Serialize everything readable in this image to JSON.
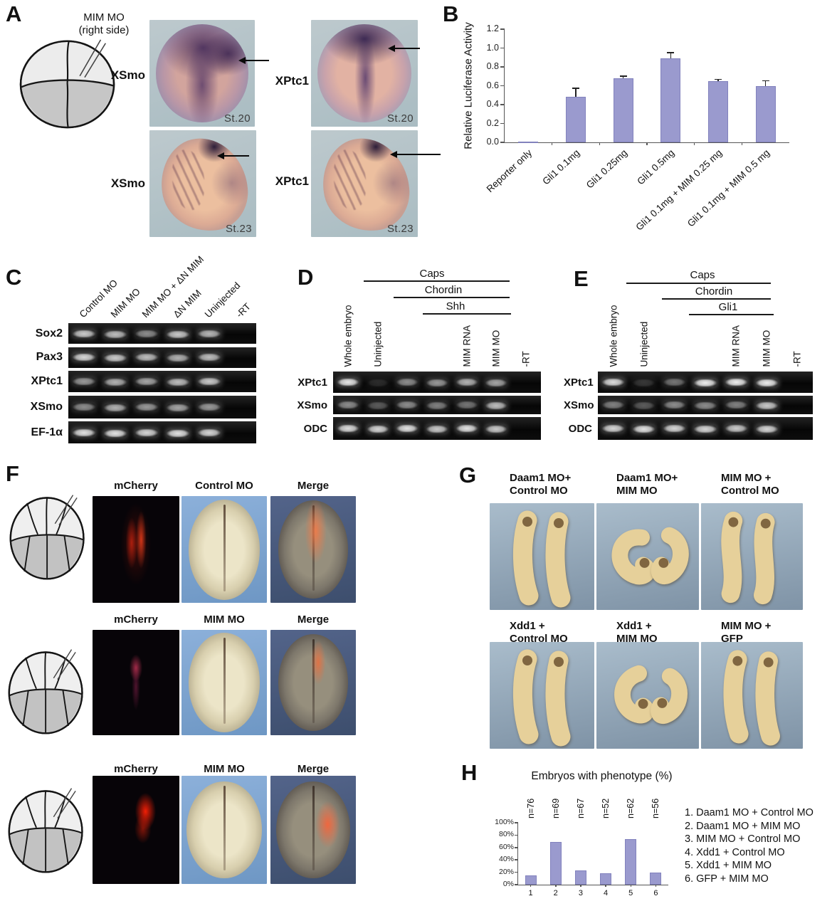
{
  "colors": {
    "bar_fill": "#9a9ace",
    "bar_edge": "#8282bd",
    "gel_bg": "#0d0d0d",
    "photo_blue_bg": "#7ba3cf",
    "merge_bg": "#46587a",
    "gphoto_bg": "#92a9bd",
    "embryo_tan": "#e6d09a",
    "stain_purple": "#6b4f82"
  },
  "panelA": {
    "letter": "A",
    "caption_line1": "MIM MO",
    "caption_line2": "(right side)",
    "items": [
      {
        "gene": "XSmo",
        "stage": "St.20"
      },
      {
        "gene": "XPtc1",
        "stage": "St.20"
      },
      {
        "gene": "XSmo",
        "stage": "St.23"
      },
      {
        "gene": "XPtc1",
        "stage": "St.23"
      }
    ]
  },
  "panelC": {
    "letter": "C",
    "lane_labels": [
      "Control MO",
      "MIM MO",
      "MIM MO + ΔN MIM",
      "ΔN MIM",
      "Uninjected",
      "-RT"
    ],
    "rows": [
      {
        "label": "Sox2",
        "bands": [
          0.8,
          0.75,
          0.55,
          0.8,
          0.72,
          0
        ]
      },
      {
        "label": "Pax3",
        "bands": [
          0.85,
          0.8,
          0.75,
          0.7,
          0.75,
          0
        ]
      },
      {
        "label": "XPtc1",
        "bands": [
          0.6,
          0.7,
          0.65,
          0.75,
          0.8,
          0
        ]
      },
      {
        "label": "XSmo",
        "bands": [
          0.55,
          0.7,
          0.6,
          0.65,
          0.6,
          0
        ]
      },
      {
        "label": "EF-1α",
        "bands": [
          0.9,
          0.9,
          0.85,
          0.9,
          0.85,
          0
        ]
      }
    ]
  },
  "panelD": {
    "letter": "D",
    "groups": [
      "Caps",
      "Chordin",
      "Shh"
    ],
    "lane_labels": [
      "Whole embryo",
      "Uninjected",
      "",
      "",
      "MIM RNA",
      "MIM MO",
      "-RT"
    ],
    "rows": [
      {
        "label": "XPtc1",
        "bands": [
          0.92,
          0.15,
          0.55,
          0.6,
          0.7,
          0.65,
          0
        ]
      },
      {
        "label": "XSmo",
        "bands": [
          0.55,
          0.35,
          0.55,
          0.5,
          0.45,
          0.75,
          0
        ]
      },
      {
        "label": "ODC",
        "bands": [
          0.88,
          0.85,
          0.9,
          0.8,
          0.9,
          0.8,
          0
        ]
      }
    ]
  },
  "panelE": {
    "letter": "E",
    "groups": [
      "Caps",
      "Chordin",
      "Gli1"
    ],
    "lane_labels": [
      "Whole embryo",
      "Uninjected",
      "",
      "",
      "MIM RNA",
      "MIM MO",
      "-RT"
    ],
    "rows": [
      {
        "label": "XPtc1",
        "bands": [
          0.88,
          0.2,
          0.45,
          0.95,
          0.95,
          0.95,
          0
        ]
      },
      {
        "label": "XSmo",
        "bands": [
          0.5,
          0.35,
          0.55,
          0.55,
          0.5,
          0.8,
          0
        ]
      },
      {
        "label": "ODC",
        "bands": [
          0.85,
          0.9,
          0.85,
          0.85,
          0.8,
          0.85,
          0
        ]
      }
    ]
  },
  "panelF": {
    "letter": "F",
    "rows": [
      {
        "headers": [
          "mCherry",
          "Control MO",
          "Merge"
        ]
      },
      {
        "headers": [
          "mCherry",
          "MIM MO",
          "Merge"
        ]
      },
      {
        "headers": [
          "mCherry",
          "MIM MO",
          "Merge"
        ]
      }
    ]
  },
  "panelG": {
    "letter": "G",
    "cells": [
      {
        "line1": "Daam1 MO+",
        "line2": "Control MO",
        "shape": "straight"
      },
      {
        "line1": "Daam1 MO+",
        "line2": "MIM MO",
        "shape": "curled"
      },
      {
        "line1": "MIM MO +",
        "line2": "Control MO",
        "shape": "scurve"
      },
      {
        "line1": "Xdd1 +",
        "line2": "Control MO",
        "shape": "straight"
      },
      {
        "line1": "Xdd1 +",
        "line2": "MIM MO",
        "shape": "curled2"
      },
      {
        "line1": "MIM MO +",
        "line2": "GFP",
        "shape": "straight"
      }
    ]
  },
  "panelH": {
    "letter": "H"
  },
  "chart_data": [
    {
      "panel": "B",
      "type": "bar",
      "title": "",
      "ylabel": "Relative Luciferase Activity",
      "categories": [
        "Reporter only",
        "Gli1 0.1mg",
        "Gli1 0.25mg",
        "Gli1 0.5mg",
        "Gli1 0.1mg + MIM 0.25 mg",
        "Gli1 0.1mg + MIM 0.5 mg"
      ],
      "values": [
        0.005,
        0.48,
        0.68,
        0.89,
        0.65,
        0.6
      ],
      "errors": [
        0,
        0.09,
        0.02,
        0.06,
        0.015,
        0.05
      ],
      "ylim": [
        0,
        1.2
      ],
      "yticks": [
        "0.0",
        "0.2",
        "0.4",
        "0.6",
        "0.8",
        "1.0",
        "1.2"
      ],
      "grid": false,
      "legend_position": "none"
    },
    {
      "panel": "H",
      "type": "bar",
      "title": "Embryos with phenotype (%)",
      "categories": [
        "1",
        "2",
        "3",
        "4",
        "5",
        "6"
      ],
      "values": [
        15,
        69,
        23,
        18,
        73,
        20
      ],
      "n_labels": [
        "n=76",
        "n=69",
        "n=67",
        "n=52",
        "n=62",
        "n=56"
      ],
      "ylim": [
        0,
        100
      ],
      "yticks": [
        "0%",
        "20%",
        "40%",
        "60%",
        "80%",
        "100%"
      ],
      "grid": false,
      "legend": [
        "1. Daam1 MO + Control MO",
        "2. Daam1 MO + MIM MO",
        "3. MIM MO + Control MO",
        "4. Xdd1 + Control MO",
        "5. Xdd1 + MIM MO",
        "6. GFP + MIM MO"
      ]
    }
  ]
}
